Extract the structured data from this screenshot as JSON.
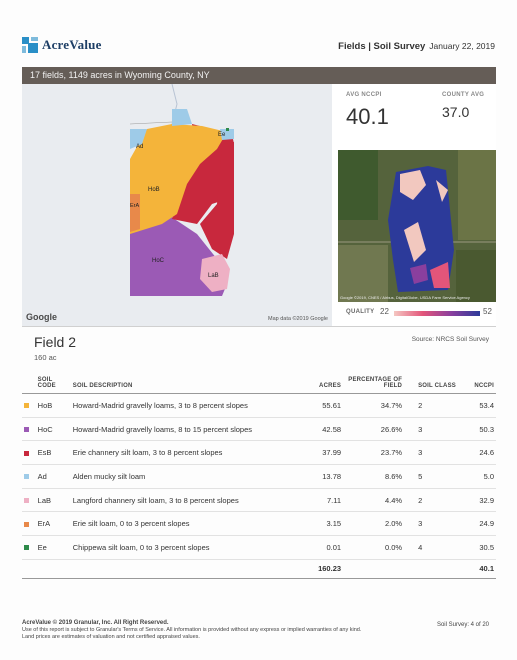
{
  "header": {
    "brand": "AcreValue",
    "section": "Fields | Soil Survey",
    "date": "January 22, 2019"
  },
  "banner": "17 fields, 1149 acres in Wyoming County, NY",
  "map": {
    "labels": [
      "Ee",
      "Ad",
      "HoB",
      "ErA",
      "HoC",
      "LaB"
    ],
    "google": "Google",
    "credit": "Map data ©2019 Google"
  },
  "stats": {
    "avg_label": "AVG NCCPI",
    "avg_value": "40.1",
    "county_label": "COUNTY AVG",
    "county_value": "37.0",
    "quality_label": "QUALITY",
    "quality_min": "22",
    "quality_max": "52",
    "aerial_credit": "Google ©2019, CNES / Airbus, DigitalGlobe, USDA Farm Service Agency"
  },
  "field": {
    "title": "Field 2",
    "size": "160 ac",
    "source": "Source: NRCS Soil Survey"
  },
  "table": {
    "headers": {
      "code": "SOIL CODE",
      "desc": "SOIL DESCRIPTION",
      "acres": "ACRES",
      "pct": "PERCENTAGE OF FIELD",
      "cls": "SOIL CLASS",
      "nccpi": "NCCPI"
    },
    "rows": [
      {
        "color": "#f4b43a",
        "code": "HoB",
        "desc": "Howard-Madrid gravelly loams, 3 to 8 percent slopes",
        "acres": "55.61",
        "pct": "34.7%",
        "cls": "2",
        "nccpi": "53.4"
      },
      {
        "color": "#9b5ab5",
        "code": "HoC",
        "desc": "Howard-Madrid gravelly loams, 8 to 15 percent slopes",
        "acres": "42.58",
        "pct": "26.6%",
        "cls": "3",
        "nccpi": "50.3"
      },
      {
        "color": "#c8283d",
        "code": "EsB",
        "desc": "Erie channery silt loam, 3 to 8 percent slopes",
        "acres": "37.99",
        "pct": "23.7%",
        "cls": "3",
        "nccpi": "24.6"
      },
      {
        "color": "#9ecbe8",
        "code": "Ad",
        "desc": "Alden mucky silt loam",
        "acres": "13.78",
        "pct": "8.6%",
        "cls": "5",
        "nccpi": "5.0"
      },
      {
        "color": "#eeb0c4",
        "code": "LaB",
        "desc": "Langford channery silt loam, 3 to 8 percent slopes",
        "acres": "7.11",
        "pct": "4.4%",
        "cls": "2",
        "nccpi": "32.9"
      },
      {
        "color": "#e8894a",
        "code": "ErA",
        "desc": "Erie silt loam, 0 to 3 percent slopes",
        "acres": "3.15",
        "pct": "2.0%",
        "cls": "3",
        "nccpi": "24.9"
      },
      {
        "color": "#2e8a4a",
        "code": "Ee",
        "desc": "Chippewa silt loam, 0 to 3 percent slopes",
        "acres": "0.01",
        "pct": "0.0%",
        "cls": "4",
        "nccpi": "30.5"
      }
    ],
    "total_acres": "160.23",
    "total_nccpi": "40.1"
  },
  "footer": {
    "copyright": "AcreValue © 2019 Granular, Inc. All Right Reserved.",
    "line1": "Use of this report is subject to Granular's Terms of Service. All information is provided without any express or implied warranties of any kind.",
    "line2": "Land prices are estimates of valuation and not certified appraised values.",
    "page": "Soil Survey: 4 of 20"
  }
}
